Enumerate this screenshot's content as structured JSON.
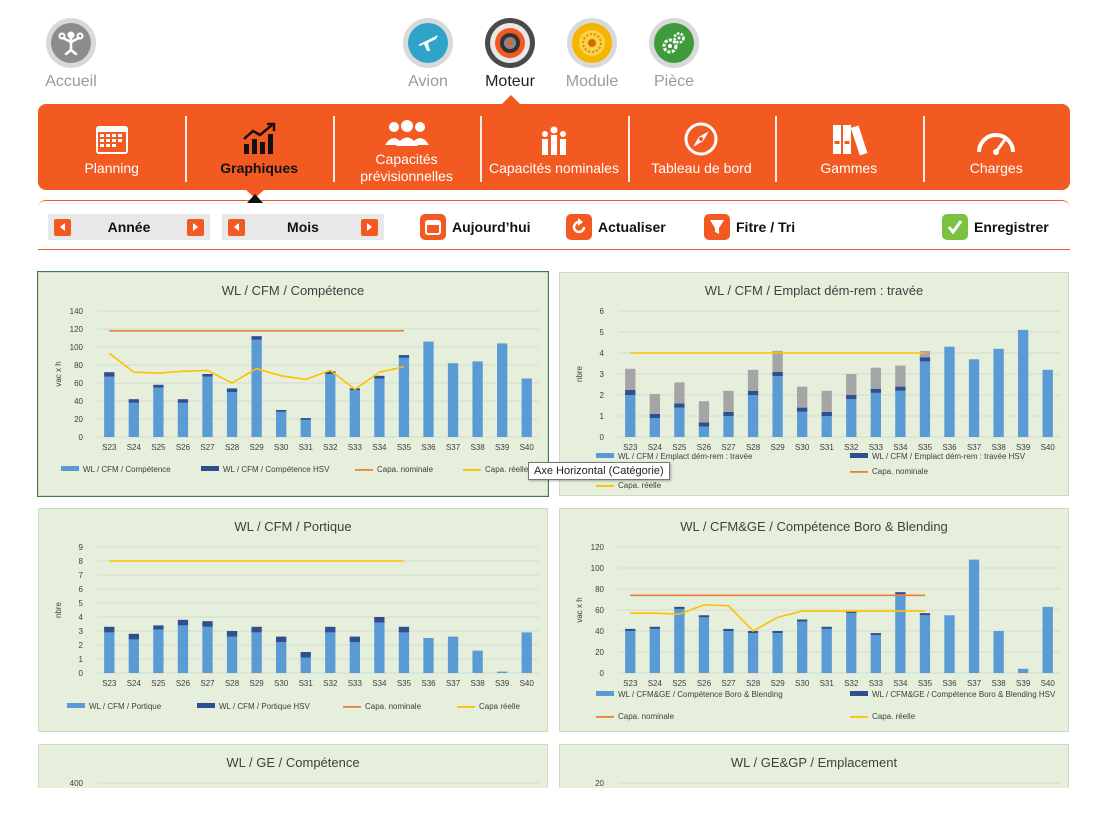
{
  "topnav": {
    "home": {
      "label": "Accueil",
      "icon": "mechanic-icon"
    },
    "items": [
      {
        "label": "Avion",
        "icon": "airplane-icon"
      },
      {
        "label": "Moteur",
        "icon": "engine-icon"
      },
      {
        "label": "Module",
        "icon": "turbine-module-icon"
      },
      {
        "label": "Pièce",
        "icon": "gears-icon"
      }
    ]
  },
  "modules": [
    {
      "label": "Planning",
      "icon": "calendar-icon"
    },
    {
      "label": "Graphiques",
      "icon": "trend-chart-icon"
    },
    {
      "label": "Capacités prévisionnelles",
      "icon": "people-group-icon"
    },
    {
      "label": "Capacités nominales",
      "icon": "people-bars-icon"
    },
    {
      "label": "Tableau de bord",
      "icon": "compass-icon"
    },
    {
      "label": "Gammes",
      "icon": "binders-icon"
    },
    {
      "label": "Charges",
      "icon": "gauge-icon"
    }
  ],
  "toolbar": {
    "year_label": "Année",
    "month_label": "Mois",
    "today_label": "Aujourd’hui",
    "refresh_label": "Actualiser",
    "filter_label": "Fitre / Tri",
    "save_label": "Enregistrer"
  },
  "tooltip": "Axe Horizontal (Catégorie)",
  "colors": {
    "accent": "#f35a22",
    "bar": "#5b9bd5",
    "bar_hsv": "#2f4f8f",
    "bar_gray": "#a5a5a5",
    "nominal": "#ed7d31",
    "reelle": "#ffc000",
    "panel_bg": "#e5efdb"
  },
  "chart_data": [
    {
      "type": "bar",
      "title": "WL / CFM / Compétence",
      "ylabel": "vac x h",
      "ylim": [
        0,
        140
      ],
      "yticks": [
        0,
        20,
        40,
        60,
        80,
        100,
        120,
        140
      ],
      "categories": [
        "S23",
        "S24",
        "S25",
        "S26",
        "S27",
        "S28",
        "S29",
        "S30",
        "S31",
        "S32",
        "S33",
        "S34",
        "S35",
        "S36",
        "S37",
        "S38",
        "S39",
        "S40"
      ],
      "series": [
        {
          "name": "WL / CFM / Compétence",
          "kind": "bar",
          "values": [
            67,
            38,
            55,
            38,
            67,
            50,
            108,
            28,
            19,
            70,
            52,
            65,
            88,
            106,
            82,
            84,
            104,
            65
          ]
        },
        {
          "name": "WL / CFM / Compétence HSV",
          "kind": "bar-stack",
          "values": [
            5,
            4,
            3,
            4,
            3,
            4,
            4,
            2,
            2,
            3,
            2,
            3,
            3,
            0,
            0,
            0,
            0,
            0
          ]
        },
        {
          "name": "Capa. nominale",
          "kind": "line",
          "values": [
            118,
            118,
            118,
            118,
            118,
            118,
            118,
            118,
            118,
            118,
            118,
            118,
            118,
            null,
            null,
            null,
            null,
            null
          ]
        },
        {
          "name": "Capa. réelle",
          "kind": "line",
          "values": [
            93,
            72,
            71,
            73,
            74,
            60,
            76,
            68,
            64,
            74,
            53,
            72,
            78,
            null,
            null,
            null,
            null,
            null
          ]
        }
      ],
      "legend": "bottom"
    },
    {
      "type": "bar",
      "title": "WL / CFM / Emplact dém-rem : travée",
      "ylabel": "nbre",
      "ylim": [
        0,
        6
      ],
      "yticks": [
        0,
        1,
        2,
        3,
        4,
        5,
        6
      ],
      "categories": [
        "S23",
        "S24",
        "S25",
        "S26",
        "S27",
        "S28",
        "S29",
        "S30",
        "S31",
        "S32",
        "S33",
        "S34",
        "S35",
        "S36",
        "S37",
        "S38",
        "S39",
        "S40"
      ],
      "series": [
        {
          "name": "WL / CFM / Emplact dém-rem : travée",
          "kind": "bar",
          "values": [
            2,
            0.9,
            1.4,
            0.5,
            1,
            2,
            2.9,
            1.2,
            1,
            1.8,
            2.1,
            2.2,
            3.6,
            4.3,
            3.7,
            4.2,
            5.1,
            3.2
          ]
        },
        {
          "name": "WL / CFM / Emplact dém-rem : travée HSV",
          "kind": "bar-stack",
          "values": [
            0.25,
            0.2,
            0.2,
            0.2,
            0.2,
            0.2,
            0.2,
            0.2,
            0.2,
            0.2,
            0.2,
            0.2,
            0.2,
            0,
            0,
            0,
            0,
            0
          ]
        },
        {
          "name": "",
          "kind": "bar-stack-gray",
          "values": [
            1,
            0.95,
            1,
            1,
            1,
            1,
            1,
            1,
            1,
            1,
            1,
            1,
            0.3,
            0,
            0,
            0,
            0,
            0
          ]
        },
        {
          "name": "Capa. nominale",
          "kind": "line",
          "values": [
            null,
            null,
            null,
            null,
            null,
            null,
            null,
            null,
            null,
            null,
            null,
            null,
            null,
            null,
            null,
            null,
            null,
            null
          ]
        },
        {
          "name": "Capa. réelle",
          "kind": "line",
          "values": [
            4,
            4,
            4,
            4,
            4,
            4,
            4,
            4,
            4,
            4,
            4,
            4,
            4,
            null,
            null,
            null,
            null,
            null
          ]
        }
      ],
      "legend": "bottom"
    },
    {
      "type": "bar",
      "title": "WL / CFM / Portique",
      "ylabel": "nbre",
      "ylim": [
        0,
        9
      ],
      "yticks": [
        0,
        1,
        2,
        3,
        4,
        5,
        6,
        7,
        8,
        9
      ],
      "categories": [
        "S23",
        "S24",
        "S25",
        "S26",
        "S27",
        "S28",
        "S29",
        "S30",
        "S31",
        "S32",
        "S33",
        "S34",
        "S35",
        "S36",
        "S37",
        "S38",
        "S39",
        "S40"
      ],
      "series": [
        {
          "name": "WL / CFM / Portique",
          "kind": "bar",
          "values": [
            2.9,
            2.4,
            3.1,
            3.4,
            3.3,
            2.6,
            2.9,
            2.2,
            1.1,
            2.9,
            2.2,
            3.6,
            2.9,
            2.5,
            2.6,
            1.6,
            0.1,
            2.9
          ]
        },
        {
          "name": "WL / CFM / Portique HSV",
          "kind": "bar-stack",
          "values": [
            0.4,
            0.4,
            0.3,
            0.4,
            0.4,
            0.4,
            0.4,
            0.4,
            0.4,
            0.4,
            0.4,
            0.4,
            0.4,
            0,
            0,
            0,
            0,
            0
          ]
        },
        {
          "name": "Capa. nominale",
          "kind": "line",
          "values": [
            null,
            null,
            null,
            null,
            null,
            null,
            null,
            null,
            null,
            null,
            null,
            null,
            null,
            null,
            null,
            null,
            null,
            null
          ]
        },
        {
          "name": "Capa réelle",
          "kind": "line",
          "values": [
            8,
            8,
            8,
            8,
            8,
            8,
            8,
            8,
            8,
            8,
            8,
            8,
            8,
            null,
            null,
            null,
            null,
            null
          ]
        }
      ],
      "legend": "bottom"
    },
    {
      "type": "bar",
      "title": "WL / CFM&GE / Compétence Boro & Blending",
      "ylabel": "vac x h",
      "ylim": [
        0,
        120
      ],
      "yticks": [
        0,
        20,
        40,
        60,
        80,
        100,
        120
      ],
      "categories": [
        "S23",
        "S24",
        "S25",
        "S26",
        "S27",
        "S28",
        "S29",
        "S30",
        "S31",
        "S32",
        "S33",
        "S34",
        "S35",
        "S36",
        "S37",
        "S38",
        "S39",
        "S40"
      ],
      "series": [
        {
          "name": "WL / CFM&GE / Compétence Boro & Blending",
          "kind": "bar",
          "values": [
            40,
            42,
            61,
            53,
            40,
            38,
            38,
            49,
            42,
            57,
            36,
            75,
            55,
            55,
            108,
            40,
            4,
            63
          ]
        },
        {
          "name": "WL / CFM&GE / Compétence Boro & Blending HSV",
          "kind": "bar-stack",
          "values": [
            2,
            2,
            2,
            2,
            2,
            2,
            2,
            2,
            2,
            2,
            2,
            2,
            2,
            0,
            0,
            0,
            0,
            0
          ]
        },
        {
          "name": "Capa. nominale",
          "kind": "line",
          "values": [
            74,
            74,
            74,
            74,
            74,
            74,
            74,
            74,
            74,
            74,
            74,
            74,
            74,
            null,
            null,
            null,
            null,
            null
          ]
        },
        {
          "name": "Capa. réelle",
          "kind": "line",
          "values": [
            57,
            57,
            56,
            65,
            64,
            40,
            53,
            59,
            59,
            59,
            59,
            59,
            59,
            null,
            null,
            null,
            null,
            null
          ]
        }
      ],
      "legend": "bottom"
    },
    {
      "type": "bar",
      "title": "WL / GE / Compétence",
      "ylabel": "",
      "yticks_visible": [
        400
      ],
      "categories": [],
      "series": []
    },
    {
      "type": "bar",
      "title": "WL / GE&GP / Emplacement",
      "ylabel": "",
      "yticks_visible": [
        20
      ],
      "categories": [],
      "series": []
    }
  ]
}
